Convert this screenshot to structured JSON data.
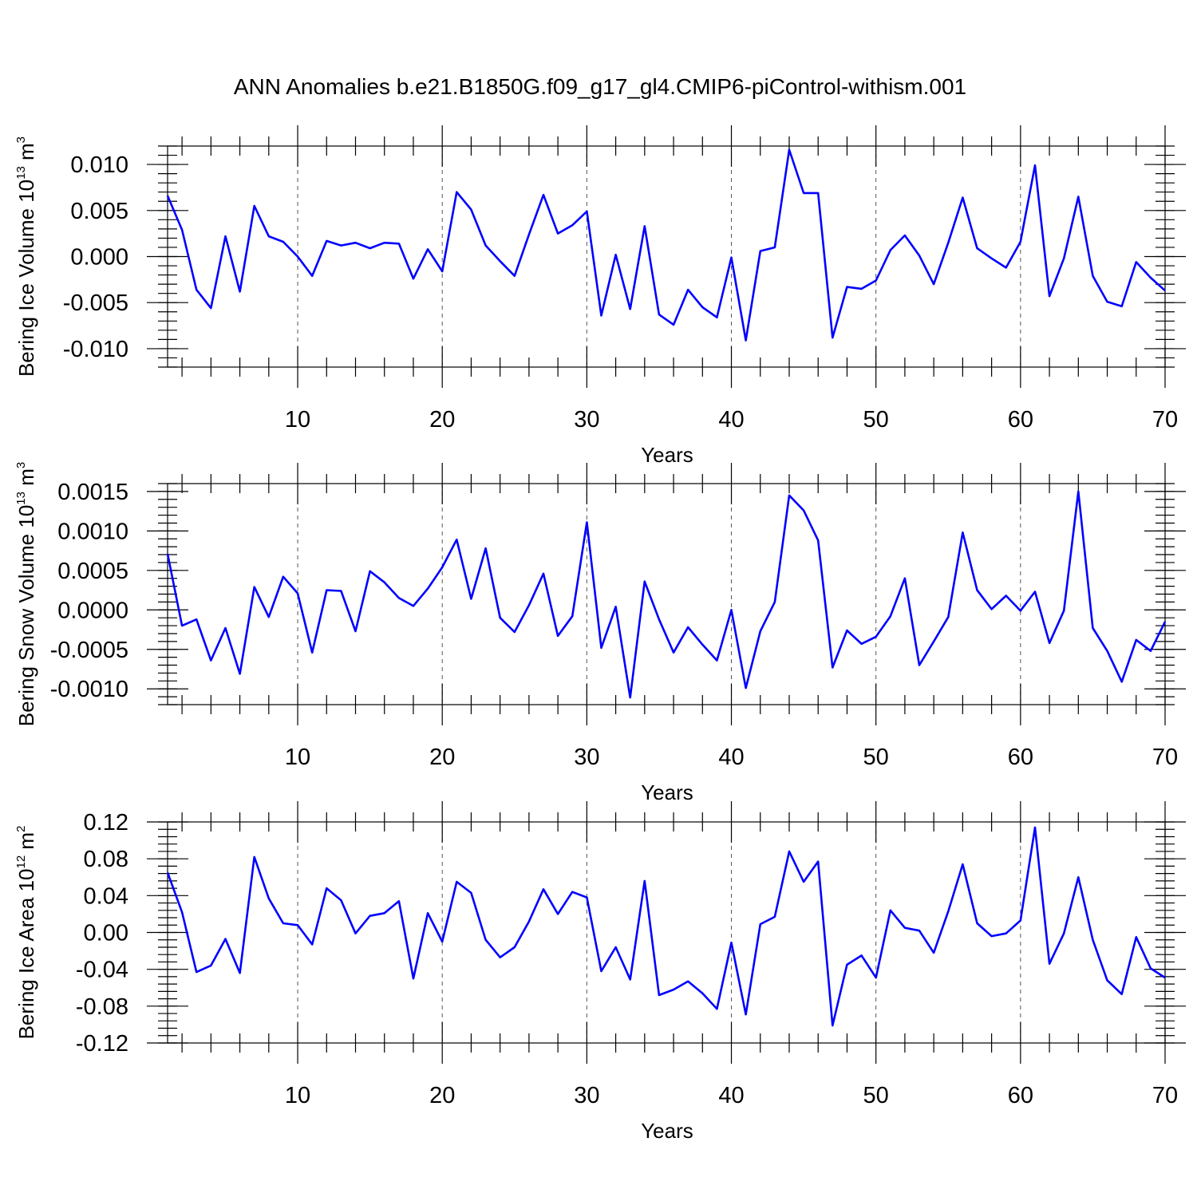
{
  "title": "ANN Anomalies b.e21.B1850G.f09_g17_gl4.CMIP6-piControl-withism.001",
  "chart_data": [
    {
      "type": "line",
      "name": "ice-volume",
      "ylabel_text": "Bering Ice Volume 10",
      "ylabel_exp": "13",
      "ylabel_unit": " m",
      "ylabel_unit_exp": "3",
      "xlabel": "Years",
      "xlim": [
        1,
        70
      ],
      "ylim": [
        -0.012,
        0.012
      ],
      "yticks": [
        -0.01,
        -0.005,
        0.0,
        0.005,
        0.01
      ],
      "ytick_labels": [
        "-0.010",
        "-0.005",
        "0.000",
        "0.005",
        "0.010"
      ],
      "xticks": [
        10,
        20,
        30,
        40,
        50,
        60,
        70
      ],
      "xtick_labels": [
        "10",
        "20",
        "30",
        "40",
        "50",
        "60",
        "70"
      ],
      "x_start": 1,
      "values": [
        0.0066,
        0.0029,
        -0.0036,
        -0.0056,
        0.0022,
        -0.0038,
        0.0055,
        0.0022,
        0.0016,
        0.0,
        -0.0021,
        0.0017,
        0.0012,
        0.0015,
        0.0009,
        0.0015,
        0.0014,
        -0.0024,
        0.0008,
        -0.0016,
        0.007,
        0.0051,
        0.0012,
        -0.0005,
        -0.0021,
        0.0024,
        0.0067,
        0.0025,
        0.0034,
        0.0049,
        -0.0064,
        0.0002,
        -0.0057,
        0.0033,
        -0.0063,
        -0.0074,
        -0.0036,
        -0.0055,
        -0.0066,
        -0.0001,
        -0.0091,
        0.0006,
        0.001,
        0.0116,
        0.0069,
        0.0069,
        -0.0088,
        -0.0033,
        -0.0035,
        -0.0026,
        0.0007,
        0.0023,
        0.0001,
        -0.003,
        0.0015,
        0.0064,
        0.0009,
        -0.0002,
        -0.0012,
        0.0016,
        0.0099,
        -0.0043,
        -0.0002,
        0.0065,
        -0.0021,
        -0.0049,
        -0.0054,
        -0.0006,
        -0.0023,
        -0.0037
      ]
    },
    {
      "type": "line",
      "name": "snow-volume",
      "ylabel_text": "Bering Snow Volume 10",
      "ylabel_exp": "13",
      "ylabel_unit": " m",
      "ylabel_unit_exp": "3",
      "xlabel": "Years",
      "xlim": [
        1,
        70
      ],
      "ylim": [
        -0.0012,
        0.0016
      ],
      "yticks": [
        -0.001,
        -0.0005,
        0.0,
        0.0005,
        0.001,
        0.0015
      ],
      "ytick_labels": [
        "-0.0010",
        "-0.0005",
        "0.0000",
        "0.0005",
        "0.0010",
        "0.0015"
      ],
      "xticks": [
        10,
        20,
        30,
        40,
        50,
        60,
        70
      ],
      "xtick_labels": [
        "10",
        "20",
        "30",
        "40",
        "50",
        "60",
        "70"
      ],
      "x_start": 1,
      "values": [
        0.00071,
        -0.0002,
        -0.00012,
        -0.00064,
        -0.00023,
        -0.00081,
        0.00029,
        -9e-05,
        0.00042,
        0.00021,
        -0.00054,
        0.00025,
        0.00024,
        -0.00027,
        0.00049,
        0.00035,
        0.00015,
        5e-05,
        0.00027,
        0.00054,
        0.00089,
        0.00014,
        0.00078,
        -0.0001,
        -0.00028,
        6e-05,
        0.00046,
        -0.00033,
        -8e-05,
        0.00111,
        -0.00048,
        4e-05,
        -0.00111,
        0.00036,
        -0.00012,
        -0.00054,
        -0.00022,
        -0.00044,
        -0.00064,
        0.0,
        -0.00099,
        -0.00027,
        0.0001,
        0.00145,
        0.00126,
        0.00088,
        -0.00073,
        -0.00026,
        -0.00043,
        -0.00034,
        -8e-05,
        0.0004,
        -0.0007,
        -0.0004,
        -9e-05,
        0.00098,
        0.00025,
        1e-05,
        0.00018,
        -1e-05,
        0.00023,
        -0.00042,
        -1e-05,
        0.0015,
        -0.00023,
        -0.00052,
        -0.00091,
        -0.00038,
        -0.00052,
        -0.00015
      ]
    },
    {
      "type": "line",
      "name": "ice-area",
      "ylabel_text": "Bering Ice Area 10",
      "ylabel_exp": "12",
      "ylabel_unit": " m",
      "ylabel_unit_exp": "2",
      "xlabel": "Years",
      "xlim": [
        1,
        70
      ],
      "ylim": [
        -0.12,
        0.12
      ],
      "yticks": [
        -0.12,
        -0.08,
        -0.04,
        0.0,
        0.04,
        0.08,
        0.12
      ],
      "ytick_labels": [
        "-0.12",
        "-0.08",
        "-0.04",
        "0.00",
        "0.04",
        "0.08",
        "0.12"
      ],
      "xticks": [
        10,
        20,
        30,
        40,
        50,
        60,
        70
      ],
      "xtick_labels": [
        "10",
        "20",
        "30",
        "40",
        "50",
        "60",
        "70"
      ],
      "x_start": 1,
      "values": [
        0.065,
        0.022,
        -0.043,
        -0.036,
        -0.007,
        -0.044,
        0.082,
        0.037,
        0.01,
        0.008,
        -0.013,
        0.048,
        0.035,
        -0.001,
        0.018,
        0.021,
        0.034,
        -0.05,
        0.021,
        -0.01,
        0.055,
        0.043,
        -0.008,
        -0.027,
        -0.016,
        0.012,
        0.047,
        0.02,
        0.044,
        0.038,
        -0.042,
        -0.016,
        -0.051,
        0.056,
        -0.068,
        -0.062,
        -0.053,
        -0.066,
        -0.083,
        -0.011,
        -0.089,
        0.009,
        0.017,
        0.088,
        0.055,
        0.077,
        -0.101,
        -0.035,
        -0.025,
        -0.049,
        0.024,
        0.005,
        0.002,
        -0.022,
        0.023,
        0.074,
        0.01,
        -0.004,
        -0.001,
        0.013,
        0.114,
        -0.034,
        -0.001,
        0.06,
        -0.008,
        -0.052,
        -0.067,
        -0.005,
        -0.039,
        -0.049
      ]
    }
  ]
}
